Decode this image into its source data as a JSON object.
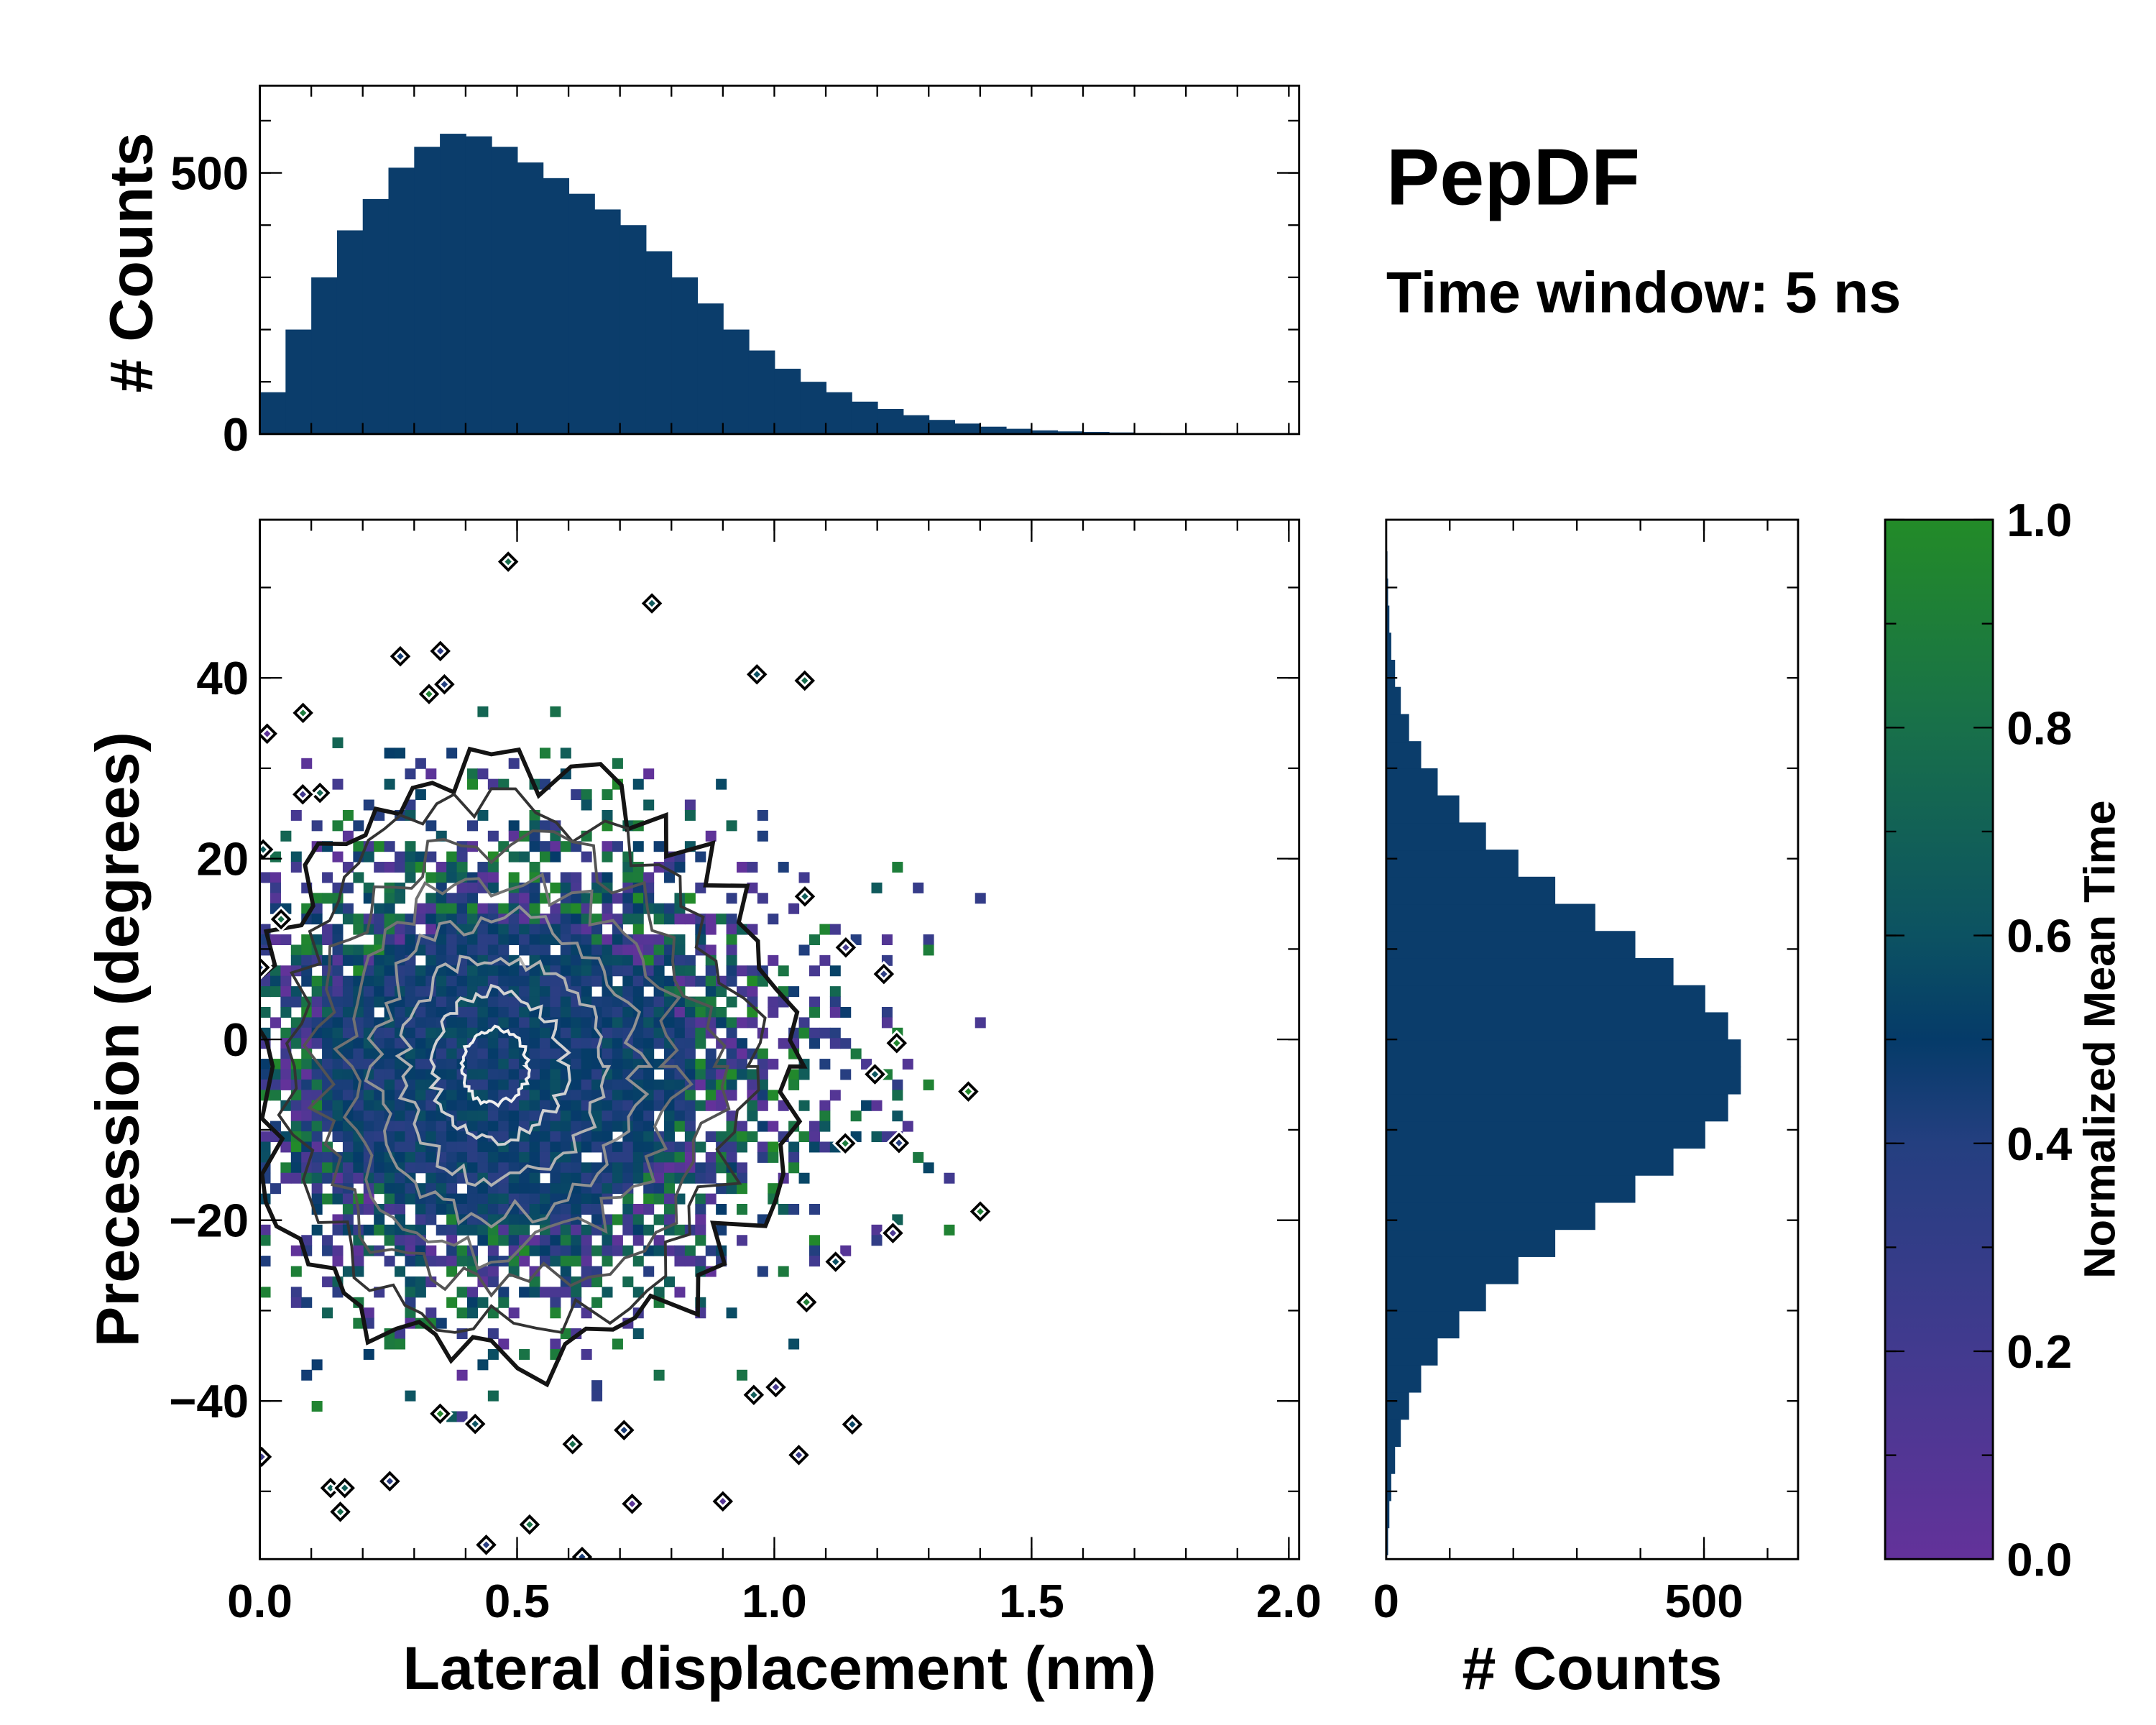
{
  "chart_data": [
    {
      "type": "bar",
      "name": "top-marginal-histogram",
      "ylabel": "# Counts",
      "xlim": [
        0,
        2.02
      ],
      "ylim": [
        0,
        667
      ],
      "yticks": [
        "0",
        "500"
      ],
      "bin_width": 0.05,
      "bin_centers": [
        0.025,
        0.075,
        0.125,
        0.175,
        0.225,
        0.275,
        0.325,
        0.375,
        0.425,
        0.475,
        0.525,
        0.575,
        0.625,
        0.675,
        0.725,
        0.775,
        0.825,
        0.875,
        0.925,
        0.975,
        1.025,
        1.075,
        1.125,
        1.175,
        1.225,
        1.275,
        1.325,
        1.375,
        1.425,
        1.475,
        1.525,
        1.575,
        1.625,
        1.675,
        1.725,
        1.775,
        1.825,
        1.875,
        1.925,
        1.975
      ],
      "values": [
        80,
        200,
        300,
        390,
        450,
        510,
        550,
        575,
        570,
        550,
        520,
        490,
        460,
        430,
        400,
        350,
        300,
        250,
        200,
        160,
        125,
        100,
        80,
        62,
        48,
        36,
        27,
        20,
        14,
        10,
        7,
        5,
        4,
        3,
        2,
        1,
        1,
        0,
        0,
        0
      ],
      "color": "#0b3d6b"
    },
    {
      "type": "heatmap",
      "name": "main-2d-histogram",
      "xlabel": "Lateral displacement (nm)",
      "ylabel": "Precession (degrees)",
      "xlim": [
        0,
        2.02
      ],
      "ylim": [
        -57.5,
        57.5
      ],
      "xticks": [
        "0.0",
        "0.5",
        "1.0",
        "1.5",
        "2.0"
      ],
      "yticks": [
        "−40",
        "−20",
        "0",
        "20",
        "40"
      ],
      "ytick_values": [
        -40,
        -20,
        0,
        20,
        40
      ],
      "xtick_values": [
        0,
        0.5,
        1.0,
        1.5,
        2.0
      ],
      "density_center": [
        0.45,
        -3
      ],
      "density_spread": [
        0.35,
        16
      ],
      "contour_levels": 8
    },
    {
      "type": "bar",
      "name": "right-marginal-histogram",
      "orientation": "horizontal",
      "xlabel": "# Counts",
      "xlim": [
        0,
        648
      ],
      "xticks": [
        "0",
        "500"
      ],
      "bin_width": 3,
      "bin_start": -57,
      "values": [
        3,
        5,
        8,
        14,
        23,
        36,
        55,
        81,
        115,
        157,
        208,
        266,
        329,
        392,
        452,
        502,
        538,
        558,
        558,
        538,
        502,
        452,
        392,
        329,
        266,
        208,
        157,
        115,
        81,
        55,
        36,
        23,
        14,
        8,
        5,
        3,
        2,
        1
      ],
      "color": "#0b3d6b"
    },
    {
      "type": "colorbar",
      "label": "Normalized Mean Time",
      "range": [
        0,
        1
      ],
      "ticks": [
        "0.0",
        "0.2",
        "0.4",
        "0.6",
        "0.8",
        "1.0"
      ],
      "stops": [
        {
          "v": 0.0,
          "c": "#63329a"
        },
        {
          "v": 0.2,
          "c": "#423a8f"
        },
        {
          "v": 0.4,
          "c": "#243f80"
        },
        {
          "v": 0.5,
          "c": "#053b69"
        },
        {
          "v": 0.6,
          "c": "#0c5262"
        },
        {
          "v": 0.8,
          "c": "#18704a"
        },
        {
          "v": 1.0,
          "c": "#238b28"
        }
      ]
    }
  ],
  "title": "PepDF",
  "subtitle": "Time window: 5 ns"
}
